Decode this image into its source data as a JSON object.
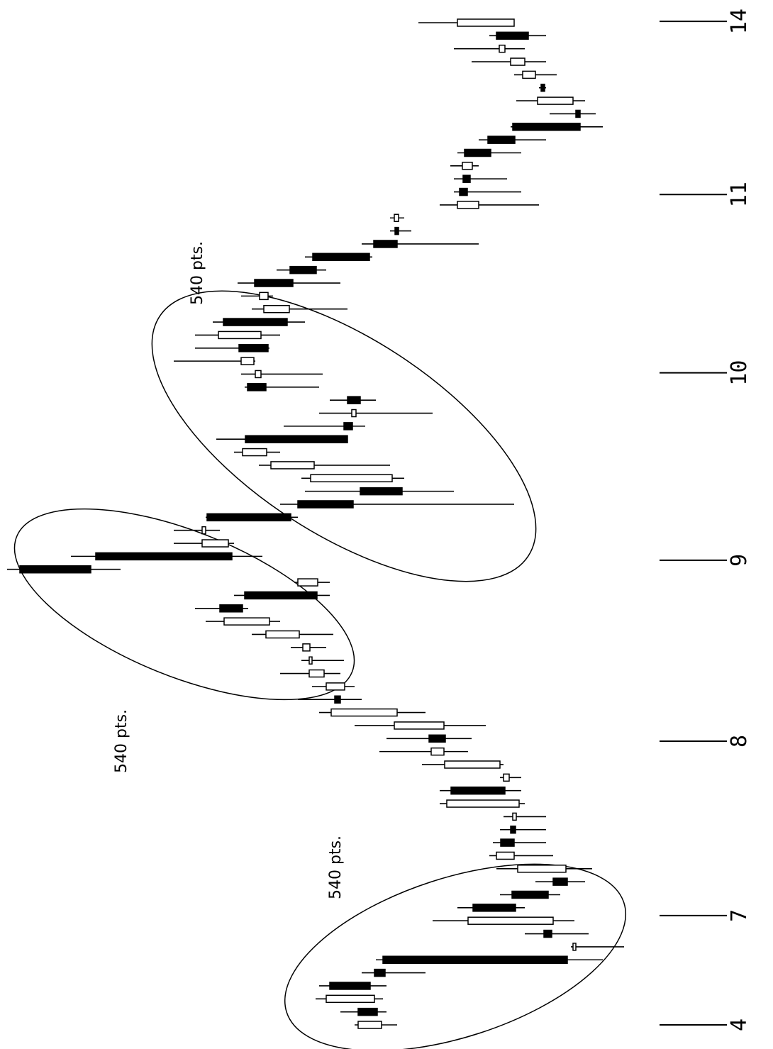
{
  "chart_data": {
    "type": "candlestick",
    "x": [
      0,
      1,
      2,
      3,
      4,
      5,
      6,
      7,
      8,
      9,
      10,
      11,
      12,
      13,
      14,
      15,
      16,
      17,
      18,
      19,
      20,
      21,
      22,
      23,
      24,
      25,
      26,
      27,
      28,
      29,
      30,
      31,
      32,
      33,
      34,
      35,
      36,
      37,
      38,
      39,
      40,
      41,
      42,
      43,
      44,
      45,
      46,
      47,
      48,
      49,
      50,
      51,
      52,
      53,
      54,
      55,
      56,
      57,
      58,
      59,
      60,
      61,
      62,
      63,
      64,
      65,
      66,
      67,
      68,
      69,
      70,
      71,
      72,
      73,
      74,
      75,
      76,
      77
    ],
    "open": [
      552,
      585,
      562,
      625,
      562,
      550,
      278,
      323,
      310,
      423,
      368,
      310,
      292,
      365,
      384,
      370,
      362,
      358,
      454,
      372,
      385,
      464,
      485,
      464,
      530,
      618,
      604,
      633,
      650,
      653,
      668,
      710,
      780,
      745,
      642,
      1062,
      955,
      768,
      800,
      798,
      670,
      582,
      537,
      647,
      714,
      744,
      605,
      588,
      600,
      741,
      722,
      732,
      753,
      722,
      775,
      682,
      712,
      731,
      681,
      649,
      563,
      533,
      528,
      415,
      442,
      437,
      424,
      435,
      402,
      367,
      278,
      282,
      327,
      335,
      350,
      378,
      390,
      365
    ],
    "high": [
      590,
      610,
      645,
      640,
      580,
      560,
      285,
      350,
      480,
      445,
      385,
      335,
      390,
      400,
      395,
      385,
      380,
      470,
      470,
      385,
      495,
      555,
      545,
      590,
      640,
      670,
      650,
      695,
      665,
      680,
      735,
      800,
      815,
      760,
      675,
      1080,
      990,
      845,
      845,
      800,
      695,
      660,
      665,
      725,
      760,
      785,
      690,
      640,
      625,
      745,
      750,
      845,
      815,
      815,
      790,
      735,
      750,
      755,
      700,
      660,
      580,
      540,
      540,
      470,
      450,
      450,
      455,
      445,
      415,
      370,
      315,
      362,
      330,
      365,
      425,
      450,
      400,
      500
    ],
    "low": [
      530,
      545,
      550,
      545,
      490,
      240,
      210,
      260,
      280,
      350,
      300,
      265,
      255,
      310,
      320,
      320,
      320,
      350,
      355,
      355,
      380,
      430,
      425,
      405,
      490,
      580,
      590,
      610,
      605,
      630,
      620,
      695,
      740,
      625,
      625,
      920,
      720,
      760,
      780,
      670,
      365,
      450,
      520,
      540,
      695,
      600,
      575,
      480,
      560,
      640,
      635,
      730,
      710,
      695,
      660,
      600,
      705,
      610,
      630,
      565,
      415,
      510,
      520,
      330,
      355,
      375,
      415,
      355,
      320,
      240,
      250,
      265,
      320,
      305,
      320,
      350,
      320,
      365
    ],
    "close": [
      585,
      558,
      630,
      568,
      547,
      290,
      282,
      312,
      430,
      363,
      317,
      290,
      360,
      390,
      365,
      363,
      367,
      460,
      378,
      380,
      463,
      482,
      462,
      534,
      623,
      610,
      630,
      654,
      654,
      663,
      715,
      774,
      748,
      643,
      670,
      962,
      763,
      805,
      805,
      680,
      592,
      523,
      652,
      708,
      748,
      600,
      593,
      594,
      582,
      715,
      730,
      750,
      712,
      782,
      685,
      718,
      724,
      677,
      644,
      569,
      530,
      528,
      534,
      445,
      431,
      427,
      438,
      398,
      364,
      272,
      272,
      332,
      322,
      353,
      370,
      386,
      345,
      445
    ],
    "xlim": [
      -1,
      78
    ],
    "xticks": [
      {
        "value": 0,
        "label": "4"
      },
      {
        "value": 8.4,
        "label": "7"
      },
      {
        "value": 21.8,
        "label": "8"
      },
      {
        "value": 35.7,
        "label": "9"
      },
      {
        "value": 50.1,
        "label": "10"
      },
      {
        "value": 63.8,
        "label": "11"
      },
      {
        "value": 77.1,
        "label": "14"
      }
    ],
    "ylim": [
      0,
      1090
    ],
    "color": "#000000",
    "up_fill": "#ffffff",
    "down_fill": "#000000",
    "annotations": [
      "540 pts.",
      "540 pts.",
      "540 pts."
    ]
  }
}
